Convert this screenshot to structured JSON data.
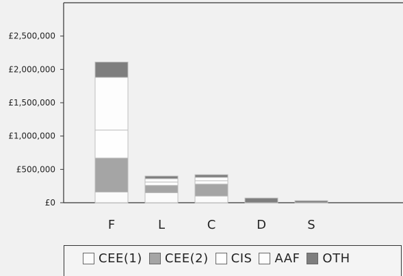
{
  "chart_data": {
    "type": "bar",
    "stacked": true,
    "categories": [
      "F",
      "L",
      "C",
      "D",
      "S"
    ],
    "series": [
      {
        "name": "CEE(1)",
        "color": "#fbfbfb",
        "values": [
          160000,
          150000,
          100000,
          0,
          0
        ]
      },
      {
        "name": "CEE(2)",
        "color": "#a5a5a5",
        "values": [
          510000,
          110000,
          180000,
          0,
          0
        ]
      },
      {
        "name": "CIS",
        "color": "#fefefe",
        "values": [
          420000,
          50000,
          50000,
          0,
          0
        ]
      },
      {
        "name": "AAF",
        "color": "#fdfdfd",
        "values": [
          790000,
          50000,
          50000,
          0,
          0
        ]
      },
      {
        "name": "OTH",
        "color": "#7e7e7e",
        "values": [
          230000,
          40000,
          40000,
          70000,
          30000
        ]
      }
    ],
    "ylim": [
      0,
      3000000
    ],
    "yticks": [
      {
        "value": 0,
        "label": "£0"
      },
      {
        "value": 500000,
        "label": "£500,000"
      },
      {
        "value": 1000000,
        "label": "£1,000,000"
      },
      {
        "value": 1500000,
        "label": "£1,500,000"
      },
      {
        "value": 2000000,
        "label": "£2,000,000"
      },
      {
        "value": 2500000,
        "label": "£2,500,000"
      }
    ],
    "grid": false,
    "legend_position": "bottom"
  },
  "colors": {
    "axis": "#333333",
    "bar_outline": "#bdbdbd",
    "background": "#f1f1f1"
  }
}
